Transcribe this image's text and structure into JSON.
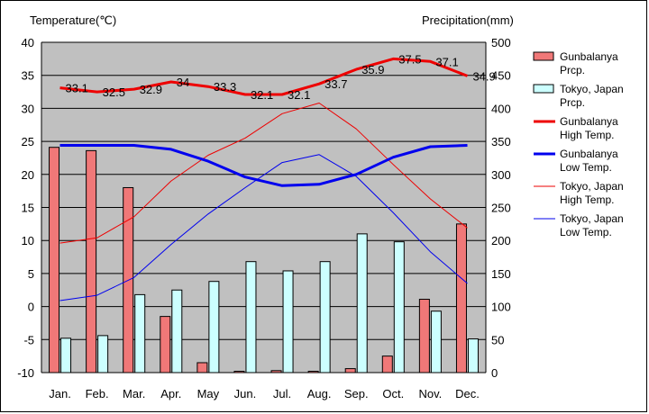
{
  "chart_data": {
    "type": "bar+line",
    "left_axis_title": "Temperature(℃)",
    "right_axis_title": "Precipitation(mm)",
    "ylim_left": [
      -10,
      40
    ],
    "ylim_right": [
      0,
      500
    ],
    "left_ticks": [
      40,
      35,
      30,
      25,
      20,
      15,
      10,
      5,
      0,
      -5,
      -10
    ],
    "right_ticks": [
      500,
      450,
      400,
      350,
      300,
      250,
      200,
      150,
      100,
      50,
      0
    ],
    "categories": [
      "Jan.",
      "Feb.",
      "Mar.",
      "Apr.",
      "May",
      "Jun.",
      "Jul.",
      "Aug.",
      "Sep.",
      "Oct.",
      "Nov.",
      "Dec."
    ],
    "grid": true,
    "legend_position": "right",
    "bars": [
      {
        "name": "Gunbalanya Prcp.",
        "label_lines": [
          "Gunbalanya",
          "Prcp."
        ],
        "color": "#f07878",
        "values": [
          341,
          336,
          280,
          85,
          15,
          2,
          3,
          2,
          6,
          25,
          111,
          225
        ]
      },
      {
        "name": "Tokyo, Japan Prcp.",
        "label_lines": [
          "Tokyo, Japan",
          "Prcp."
        ],
        "color": "#ccffff",
        "values": [
          52,
          56,
          118,
          125,
          138,
          168,
          154,
          168,
          210,
          198,
          93,
          51
        ]
      }
    ],
    "lines": [
      {
        "name": "Gunbalanya High Temp.",
        "label_lines": [
          "Gunbalanya",
          "High Temp."
        ],
        "color": "#ee0000",
        "width": 3,
        "values": [
          33.1,
          32.5,
          32.9,
          34.0,
          33.3,
          32.1,
          32.1,
          33.7,
          35.9,
          37.5,
          37.1,
          34.9
        ],
        "point_labels": [
          "33.1",
          "32.5",
          "32.9",
          "34",
          "33.3",
          "32.1",
          "32.1",
          "33.7",
          "35.9",
          "37.5",
          "37.1",
          "34.9"
        ]
      },
      {
        "name": "Gunbalanya Low Temp.",
        "label_lines": [
          "Gunbalanya",
          "Low Temp."
        ],
        "color": "#0000ee",
        "width": 3,
        "values": [
          24.4,
          24.4,
          24.4,
          23.8,
          22.0,
          19.6,
          18.3,
          18.5,
          20.0,
          22.6,
          24.2,
          24.4
        ]
      },
      {
        "name": "Tokyo, Japan High Temp.",
        "label_lines": [
          "Tokyo, Japan",
          "High Temp."
        ],
        "color": "#ee0000",
        "width": 1,
        "values": [
          9.6,
          10.4,
          13.6,
          19.0,
          22.9,
          25.5,
          29.2,
          30.8,
          26.9,
          21.5,
          16.3,
          11.9
        ]
      },
      {
        "name": "Tokyo, Japan Low Temp.",
        "label_lines": [
          "Tokyo, Japan",
          "Low Temp."
        ],
        "color": "#0000ee",
        "width": 1,
        "values": [
          0.9,
          1.7,
          4.4,
          9.4,
          14.0,
          18.0,
          21.8,
          23.0,
          19.7,
          14.2,
          8.3,
          3.5
        ]
      }
    ]
  }
}
